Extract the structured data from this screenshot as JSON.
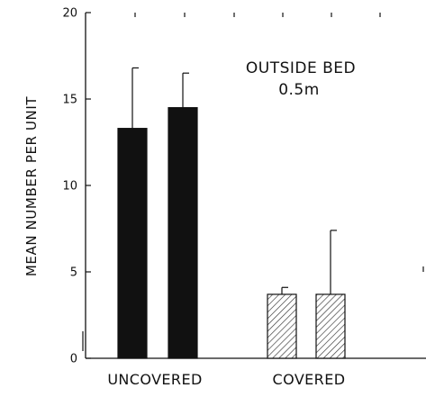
{
  "chart_data": {
    "type": "bar",
    "ylabel": "MEAN NUMBER PER UNIT",
    "ylim": [
      0,
      20
    ],
    "yticks": [
      "0",
      "5",
      "10",
      "15",
      "20"
    ],
    "categories": [
      "UNCOVERED",
      "COVERED"
    ],
    "bars": [
      {
        "group": "UNCOVERED",
        "value": 13.3,
        "error": 16.8,
        "fill": "solid"
      },
      {
        "group": "UNCOVERED",
        "value": 14.5,
        "error": 16.5,
        "fill": "solid"
      },
      {
        "group": "COVERED",
        "value": 3.7,
        "error": 4.1,
        "fill": "hatched"
      },
      {
        "group": "COVERED",
        "value": 3.7,
        "error": 7.4,
        "fill": "hatched"
      }
    ],
    "annotation": [
      "OUTSIDE BED",
      "0.5m"
    ],
    "grid": false,
    "colors": {
      "solid": "#111111",
      "axis": "#111111",
      "hatch": "#333333"
    }
  }
}
